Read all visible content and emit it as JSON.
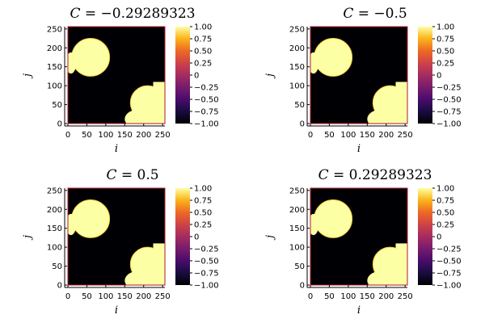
{
  "chart_data": [
    {
      "type": "heatmap",
      "title": "$C = -0.29289323$",
      "title_parts": {
        "lhs": "C",
        "rhs": "−0.29289323"
      },
      "xlabel": "i",
      "ylabel": "j",
      "xlim": [
        0,
        256
      ],
      "ylim": [
        0,
        256
      ],
      "x_ticks": [
        0,
        50,
        100,
        150,
        200,
        250
      ],
      "y_ticks": [
        0,
        50,
        100,
        150,
        200,
        250
      ],
      "colorbar": {
        "range": [
          -1.0,
          1.0
        ],
        "ticks": [
          "1.00",
          "0.75",
          "0.50",
          "0.25",
          "0",
          "−0.25",
          "−0.50",
          "−0.75",
          "−1.00"
        ],
        "colormap": "inferno"
      },
      "grid": false,
      "blobs": {
        "upper_left": {
          "center": [
            60,
            175
          ],
          "radius": 50,
          "value": 1.0
        },
        "lower_right": {
          "center": [
            210,
            55
          ],
          "radius": 45,
          "value": 1.0
        },
        "background": -1.0
      }
    },
    {
      "type": "heatmap",
      "title": "$C = -0.5$",
      "title_parts": {
        "lhs": "C",
        "rhs": "−0.5"
      },
      "xlabel": "i",
      "ylabel": "j",
      "xlim": [
        0,
        256
      ],
      "ylim": [
        0,
        256
      ],
      "x_ticks": [
        0,
        50,
        100,
        150,
        200,
        250
      ],
      "y_ticks": [
        0,
        50,
        100,
        150,
        200,
        250
      ],
      "colorbar": {
        "range": [
          -1.0,
          1.0
        ],
        "ticks": [
          "1.00",
          "0.75",
          "0.50",
          "0.25",
          "0",
          "−0.25",
          "−0.50",
          "−0.75",
          "−1.00"
        ],
        "colormap": "inferno"
      },
      "grid": false,
      "blobs": {
        "upper_left": {
          "center": [
            60,
            175
          ],
          "radius": 50,
          "value": 1.0
        },
        "lower_right": {
          "center": [
            210,
            55
          ],
          "radius": 45,
          "value": 1.0
        },
        "background": -1.0
      }
    },
    {
      "type": "heatmap",
      "title": "$C = 0.5$",
      "title_parts": {
        "lhs": "C",
        "rhs": "0.5"
      },
      "xlabel": "i",
      "ylabel": "j",
      "xlim": [
        0,
        256
      ],
      "ylim": [
        0,
        256
      ],
      "x_ticks": [
        0,
        50,
        100,
        150,
        200,
        250
      ],
      "y_ticks": [
        0,
        50,
        100,
        150,
        200,
        250
      ],
      "colorbar": {
        "range": [
          -1.0,
          1.0
        ],
        "ticks": [
          "1.00",
          "0.75",
          "0.50",
          "0.25",
          "0",
          "−0.25",
          "−0.50",
          "−0.75",
          "−1.00"
        ],
        "colormap": "inferno"
      },
      "grid": false,
      "blobs": {
        "upper_left": {
          "center": [
            60,
            175
          ],
          "radius": 50,
          "value": 1.0
        },
        "lower_right": {
          "center": [
            210,
            55
          ],
          "radius": 45,
          "value": 1.0
        },
        "background": -1.0
      }
    },
    {
      "type": "heatmap",
      "title": "$C = 0.29289323$",
      "title_parts": {
        "lhs": "C",
        "rhs": "0.29289323"
      },
      "xlabel": "i",
      "ylabel": "j",
      "xlim": [
        0,
        256
      ],
      "ylim": [
        0,
        256
      ],
      "x_ticks": [
        0,
        50,
        100,
        150,
        200,
        250
      ],
      "y_ticks": [
        0,
        50,
        100,
        150,
        200,
        250
      ],
      "colorbar": {
        "range": [
          -1.0,
          1.0
        ],
        "ticks": [
          "1.00",
          "0.75",
          "0.50",
          "0.25",
          "0",
          "−0.25",
          "−0.50",
          "−0.75",
          "−1.00"
        ],
        "colormap": "inferno"
      },
      "grid": false,
      "blobs": {
        "upper_left": {
          "center": [
            60,
            175
          ],
          "radius": 50,
          "value": 1.0
        },
        "lower_right": {
          "center": [
            210,
            55
          ],
          "radius": 45,
          "value": 1.0
        },
        "background": -1.0
      }
    }
  ],
  "colors": {
    "background_low": "#000004",
    "blob_high": "#fcffa4",
    "blob_edge": "#f7d13d",
    "frame": "#b2182b"
  }
}
